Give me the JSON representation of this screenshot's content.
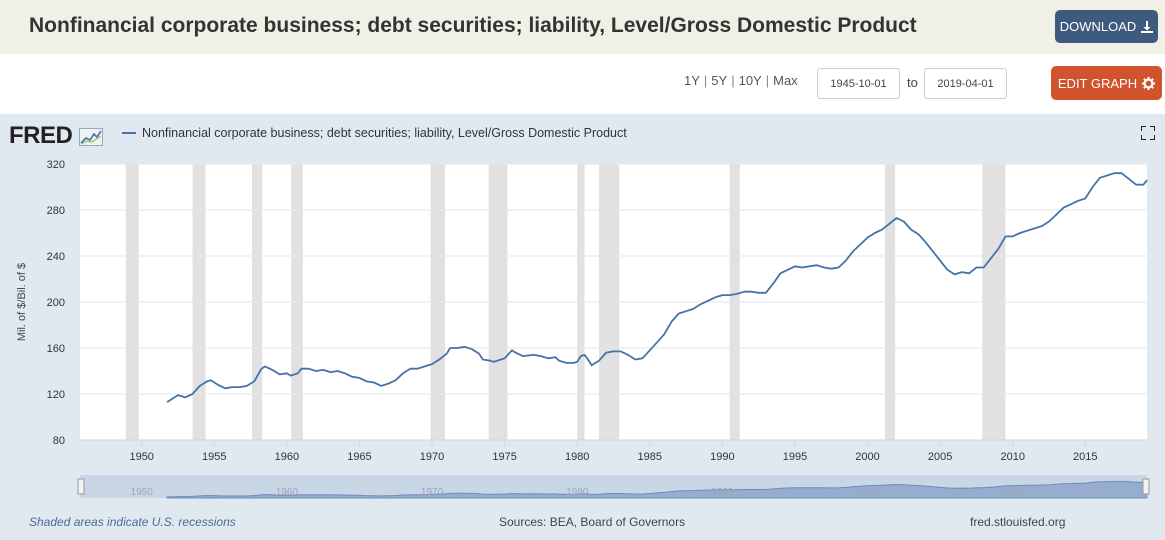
{
  "header": {
    "title": "Nonfinancial corporate business; debt securities; liability, Level/Gross Domestic Product",
    "download_label": "DOWNLOAD"
  },
  "controls": {
    "ranges": [
      "1Y",
      "5Y",
      "10Y",
      "Max"
    ],
    "start_date": "1945-10-01",
    "to_label": "to",
    "end_date": "2019-04-01",
    "edit_label": "EDIT GRAPH"
  },
  "chart_panel": {
    "logo": "FRED",
    "legend_label": "Nonfinancial corporate business; debt securities; liability, Level/Gross Domestic Product",
    "recession_note": "Shaded areas indicate U.S. recessions",
    "sources": "Sources: BEA, Board of Governors",
    "site": "fred.stlouisfed.org"
  },
  "colors": {
    "series": "#4572a7",
    "recession": "#e1e1e1",
    "download_bg": "#3f5a7f",
    "edit_bg": "#d0532d"
  },
  "chart_data": {
    "type": "line",
    "title": "Nonfinancial corporate business; debt securities; liability, Level/Gross Domestic Product",
    "ylabel": "Mil. of $/Bil. of $",
    "xlabel": "",
    "ylim": [
      80,
      320
    ],
    "xlim": [
      1945.75,
      2019.25
    ],
    "yticks": [
      80,
      120,
      160,
      200,
      240,
      280,
      320
    ],
    "xticks": [
      1950,
      1955,
      1960,
      1965,
      1970,
      1975,
      1980,
      1985,
      1990,
      1995,
      2000,
      2005,
      2010,
      2015
    ],
    "grid": "horizontal",
    "recessions": [
      [
        1948.9,
        1949.8
      ],
      [
        1953.5,
        1954.4
      ],
      [
        1957.6,
        1958.3
      ],
      [
        1960.3,
        1961.1
      ],
      [
        1969.9,
        1970.9
      ],
      [
        1973.9,
        1975.2
      ],
      [
        1980.0,
        1980.5
      ],
      [
        1981.5,
        1982.9
      ],
      [
        1990.5,
        1991.2
      ],
      [
        2001.2,
        2001.9
      ],
      [
        2007.9,
        2009.5
      ]
    ],
    "series": [
      {
        "name": "Nonfinancial corporate business; debt securities; liability, Level/Gross Domestic Product",
        "points": [
          [
            1951.75,
            113
          ],
          [
            1952.25,
            117
          ],
          [
            1952.5,
            119
          ],
          [
            1953.0,
            117
          ],
          [
            1953.5,
            120
          ],
          [
            1954.0,
            127
          ],
          [
            1954.5,
            131
          ],
          [
            1954.75,
            132
          ],
          [
            1955.25,
            128
          ],
          [
            1955.75,
            125
          ],
          [
            1956.25,
            126
          ],
          [
            1956.75,
            126
          ],
          [
            1957.25,
            127
          ],
          [
            1957.75,
            131
          ],
          [
            1958.25,
            142
          ],
          [
            1958.5,
            144
          ],
          [
            1959.0,
            141
          ],
          [
            1959.5,
            137
          ],
          [
            1960.0,
            138
          ],
          [
            1960.25,
            136
          ],
          [
            1960.75,
            138
          ],
          [
            1961.0,
            142
          ],
          [
            1961.5,
            142
          ],
          [
            1962.0,
            140
          ],
          [
            1962.5,
            141
          ],
          [
            1963.0,
            139
          ],
          [
            1963.5,
            140
          ],
          [
            1964.0,
            138
          ],
          [
            1964.5,
            135
          ],
          [
            1965.0,
            134
          ],
          [
            1965.5,
            131
          ],
          [
            1966.0,
            130
          ],
          [
            1966.5,
            127
          ],
          [
            1967.0,
            129
          ],
          [
            1967.5,
            132
          ],
          [
            1968.0,
            138
          ],
          [
            1968.5,
            142
          ],
          [
            1969.0,
            142
          ],
          [
            1969.5,
            144
          ],
          [
            1970.0,
            146
          ],
          [
            1970.5,
            150
          ],
          [
            1971.0,
            155
          ],
          [
            1971.25,
            160
          ],
          [
            1971.75,
            160
          ],
          [
            1972.25,
            161
          ],
          [
            1972.75,
            159
          ],
          [
            1973.25,
            155
          ],
          [
            1973.5,
            150
          ],
          [
            1974.0,
            149
          ],
          [
            1974.25,
            148
          ],
          [
            1975.0,
            151
          ],
          [
            1975.5,
            158
          ],
          [
            1975.75,
            156
          ],
          [
            1976.25,
            153
          ],
          [
            1977.0,
            154
          ],
          [
            1977.5,
            153
          ],
          [
            1978.0,
            151
          ],
          [
            1978.5,
            152
          ],
          [
            1978.75,
            149
          ],
          [
            1979.25,
            147
          ],
          [
            1979.75,
            147
          ],
          [
            1980.0,
            148
          ],
          [
            1980.25,
            153
          ],
          [
            1980.5,
            154
          ],
          [
            1980.75,
            150
          ],
          [
            1981.0,
            145
          ],
          [
            1981.5,
            149
          ],
          [
            1982.0,
            156
          ],
          [
            1982.5,
            157
          ],
          [
            1983.0,
            157
          ],
          [
            1983.5,
            154
          ],
          [
            1984.0,
            150
          ],
          [
            1984.5,
            151
          ],
          [
            1985.0,
            158
          ],
          [
            1985.5,
            165
          ],
          [
            1986.0,
            172
          ],
          [
            1986.5,
            183
          ],
          [
            1987.0,
            190
          ],
          [
            1987.5,
            192
          ],
          [
            1988.0,
            194
          ],
          [
            1988.5,
            198
          ],
          [
            1989.0,
            201
          ],
          [
            1989.5,
            204
          ],
          [
            1990.0,
            206
          ],
          [
            1990.5,
            206
          ],
          [
            1991.0,
            207
          ],
          [
            1991.5,
            209
          ],
          [
            1992.0,
            209
          ],
          [
            1992.5,
            208
          ],
          [
            1993.0,
            208
          ],
          [
            1993.5,
            216
          ],
          [
            1994.0,
            225
          ],
          [
            1994.5,
            228
          ],
          [
            1995.0,
            231
          ],
          [
            1995.5,
            230
          ],
          [
            1996.0,
            231
          ],
          [
            1996.5,
            232
          ],
          [
            1997.0,
            230
          ],
          [
            1997.5,
            229
          ],
          [
            1998.0,
            230
          ],
          [
            1998.5,
            236
          ],
          [
            1999.0,
            244
          ],
          [
            1999.5,
            250
          ],
          [
            2000.0,
            256
          ],
          [
            2000.5,
            260
          ],
          [
            2001.0,
            263
          ],
          [
            2001.5,
            268
          ],
          [
            2002.0,
            273
          ],
          [
            2002.5,
            270
          ],
          [
            2003.0,
            263
          ],
          [
            2003.5,
            259
          ],
          [
            2004.0,
            252
          ],
          [
            2004.5,
            244
          ],
          [
            2005.0,
            236
          ],
          [
            2005.5,
            228
          ],
          [
            2006.0,
            224
          ],
          [
            2006.5,
            226
          ],
          [
            2007.0,
            225
          ],
          [
            2007.5,
            230
          ],
          [
            2008.0,
            230
          ],
          [
            2008.5,
            238
          ],
          [
            2009.0,
            246
          ],
          [
            2009.5,
            257
          ],
          [
            2010.0,
            257
          ],
          [
            2010.5,
            260
          ],
          [
            2011.0,
            262
          ],
          [
            2011.5,
            264
          ],
          [
            2012.0,
            266
          ],
          [
            2012.5,
            270
          ],
          [
            2013.0,
            276
          ],
          [
            2013.5,
            282
          ],
          [
            2014.0,
            285
          ],
          [
            2014.5,
            288
          ],
          [
            2015.0,
            290
          ],
          [
            2015.5,
            300
          ],
          [
            2016.0,
            308
          ],
          [
            2016.5,
            310
          ],
          [
            2017.0,
            312
          ],
          [
            2017.5,
            312
          ],
          [
            2018.0,
            307
          ],
          [
            2018.5,
            302
          ],
          [
            2019.0,
            302
          ],
          [
            2019.25,
            306
          ]
        ]
      }
    ]
  }
}
